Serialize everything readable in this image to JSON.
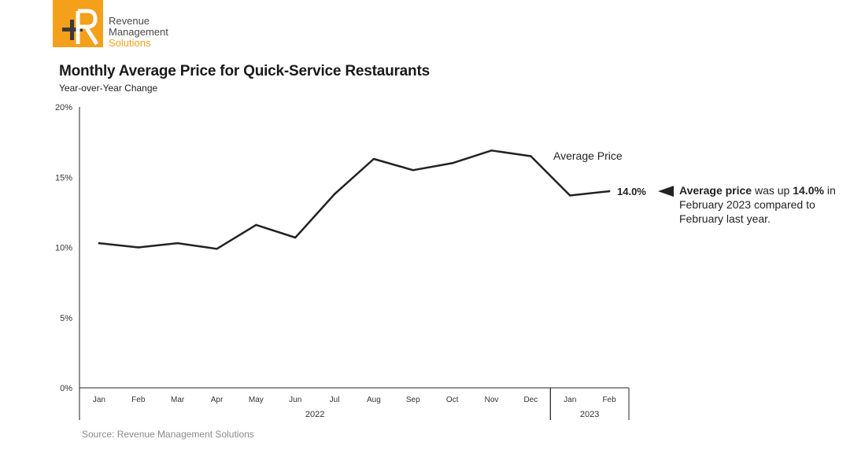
{
  "brand": {
    "line1": "Revenue",
    "line2": "Management",
    "line3": "Solutions",
    "accent_color": "#f5a01a",
    "dark_color": "#4a4a4a"
  },
  "title": "Monthly Average Price for Quick-Service Restaurants",
  "subtitle": "Year-over-Year Change",
  "callout": {
    "bold_lead": "Average price",
    "text_mid": " was up ",
    "bold_value": "14.0%",
    "text_end": " in February 2023 compared to February last year."
  },
  "source": "Source: Revenue Management Solutions",
  "chart_data": {
    "type": "line",
    "categories": [
      "Jan",
      "Feb",
      "Mar",
      "Apr",
      "May",
      "Jun",
      "Jul",
      "Aug",
      "Sep",
      "Oct",
      "Nov",
      "Dec",
      "Jan",
      "Feb"
    ],
    "year_groups": [
      {
        "label": "2022",
        "from": 0,
        "to": 11
      },
      {
        "label": "2023",
        "from": 12,
        "to": 13
      }
    ],
    "y_ticks": [
      "0%",
      "5%",
      "10%",
      "15%",
      "20%"
    ],
    "ylim": [
      0,
      20
    ],
    "series": [
      {
        "name": "Average Price",
        "color": "#222222",
        "values": [
          10.3,
          10.0,
          10.3,
          9.9,
          11.6,
          10.7,
          13.8,
          16.3,
          15.5,
          16.0,
          16.9,
          16.5,
          13.7,
          14.0
        ]
      }
    ],
    "end_label": "14.0%",
    "grid": false
  }
}
